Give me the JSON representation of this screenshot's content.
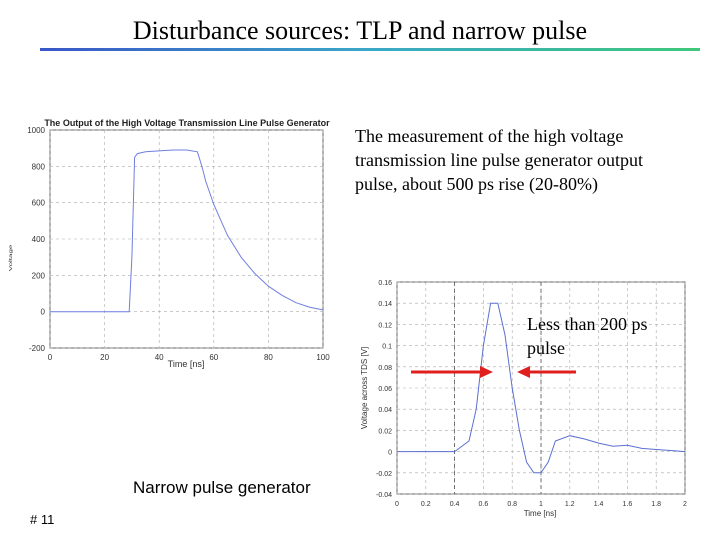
{
  "slide": {
    "title": "Disturbance sources: TLP and narrow pulse",
    "description": "The measurement of the high voltage transmission line pulse generator output pulse, about 500 ps rise (20-80%)",
    "callout": "Less than 200 ps pulse",
    "caption": "Narrow pulse generator",
    "slide_number": "# 11",
    "accent_color": "#3a56c8",
    "arrow_color": "#e0201e"
  },
  "chart_data": [
    {
      "type": "line",
      "title": "The Output of the High Voltage Transmission Line Pulse Generator",
      "xlabel": "Time [ns]",
      "ylabel": "Voltage",
      "xlim": [
        0,
        100
      ],
      "ylim": [
        -200,
        1000
      ],
      "x_ticks": [
        "0",
        "20",
        "40",
        "60",
        "80",
        "100"
      ],
      "y_ticks": [
        "-200",
        "0",
        "200",
        "400",
        "600",
        "800",
        "1000"
      ],
      "grid": true,
      "series": [
        {
          "color": "#6f7fe0",
          "x": [
            0,
            10,
            20,
            29,
            30,
            31,
            32,
            35,
            40,
            45,
            50,
            54,
            55,
            56,
            57,
            60,
            65,
            70,
            75,
            80,
            85,
            90,
            95,
            100
          ],
          "y": [
            0,
            0,
            0,
            0,
            300,
            850,
            870,
            880,
            885,
            890,
            890,
            880,
            830,
            780,
            720,
            590,
            420,
            300,
            210,
            140,
            90,
            50,
            25,
            10
          ]
        }
      ]
    },
    {
      "type": "line",
      "xlabel": "Time [ns]",
      "ylabel": "Voltage across TDS [V]",
      "xlim": [
        0,
        2
      ],
      "ylim": [
        -0.04,
        0.16
      ],
      "x_ticks": [
        "0",
        "0.2",
        "0.4",
        "0.6",
        "0.8",
        "1",
        "1.2",
        "1.4",
        "1.6",
        "1.8",
        "2"
      ],
      "y_ticks": [
        "0.16",
        "0.14",
        "0.12",
        "0.1",
        "0.08",
        "0.06",
        "0.04",
        "0.02",
        "0",
        "-0.02",
        "-0.04"
      ],
      "grid": true,
      "series": [
        {
          "color": "#5a6fd0",
          "x": [
            0,
            0.2,
            0.4,
            0.5,
            0.55,
            0.6,
            0.65,
            0.7,
            0.75,
            0.8,
            0.85,
            0.9,
            0.95,
            1.0,
            1.05,
            1.1,
            1.2,
            1.3,
            1.4,
            1.5,
            1.6,
            1.7,
            1.8,
            1.9,
            2.0
          ],
          "y": [
            0,
            0,
            0,
            0.01,
            0.04,
            0.1,
            0.14,
            0.14,
            0.11,
            0.06,
            0.02,
            -0.01,
            -0.02,
            -0.02,
            -0.01,
            0.01,
            0.015,
            0.012,
            0.008,
            0.005,
            0.006,
            0.003,
            0.002,
            0.001,
            0
          ]
        }
      ],
      "dashed_vlines": [
        0.4,
        1.0
      ]
    }
  ]
}
